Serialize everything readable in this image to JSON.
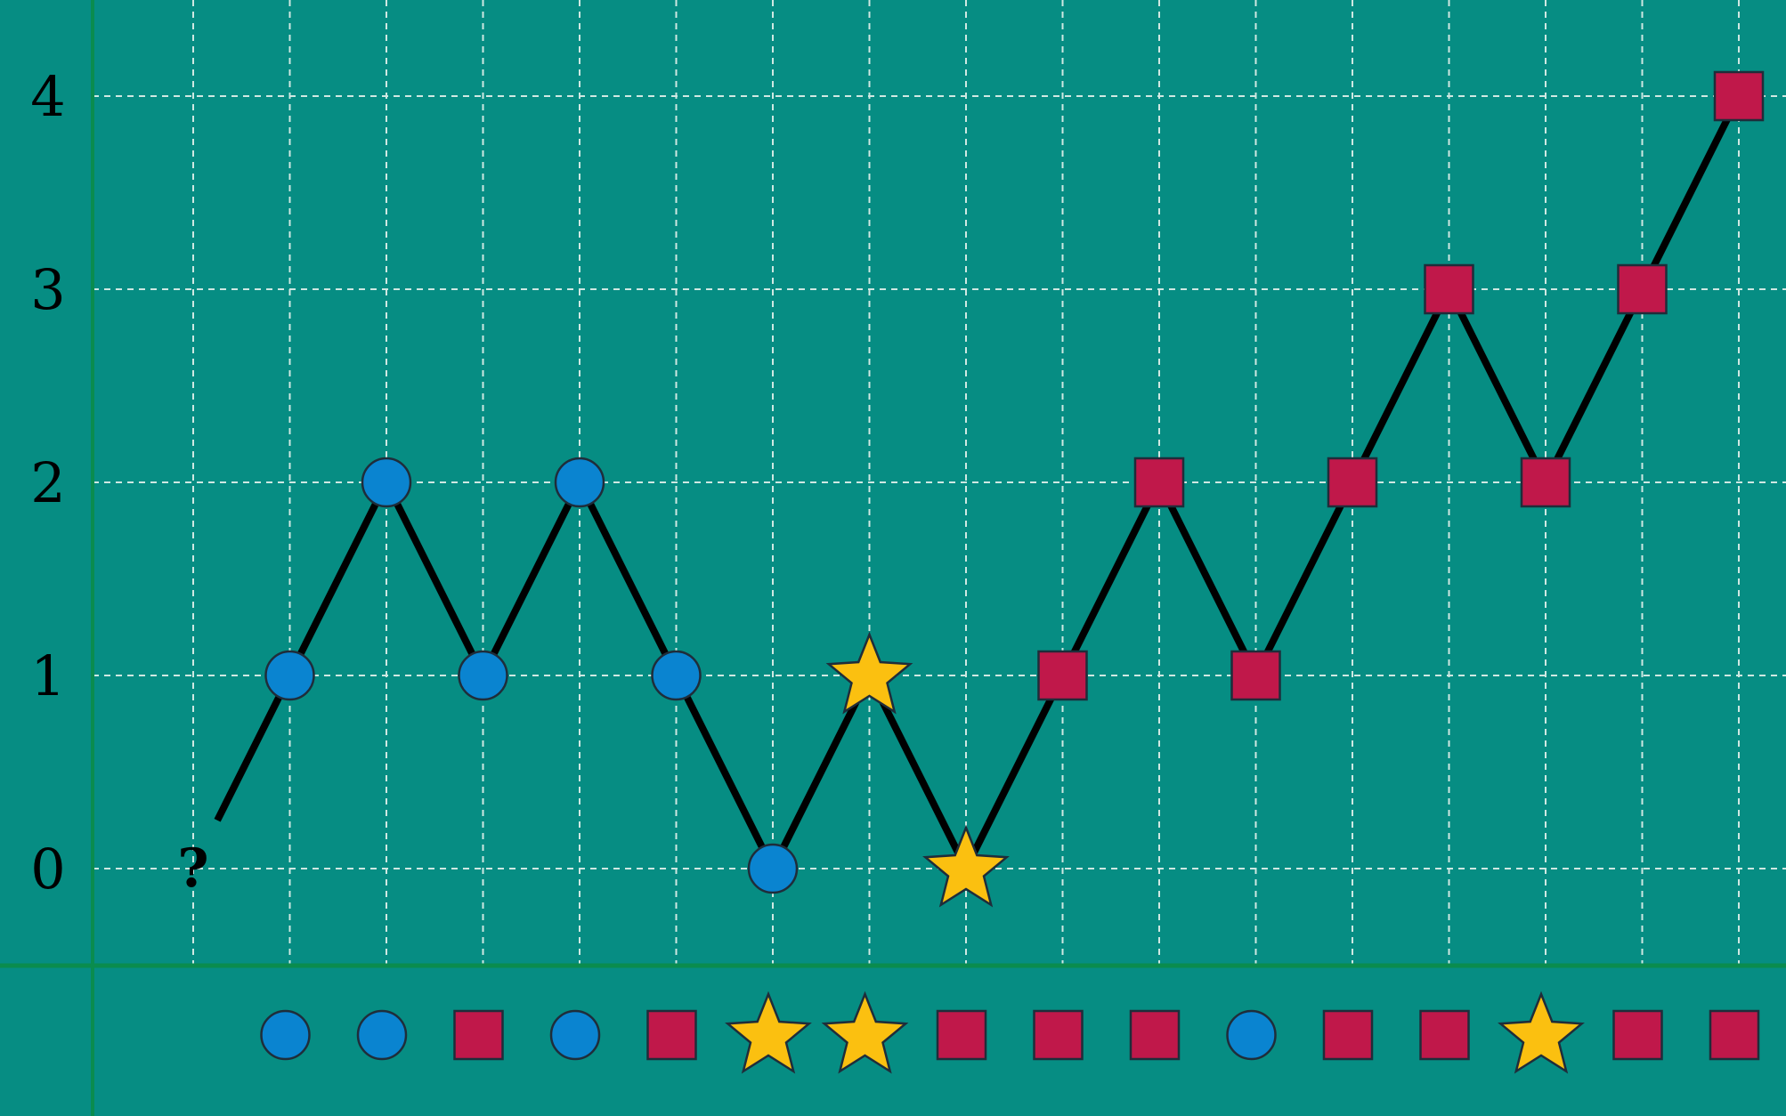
{
  "colors": {
    "background": "#068d83",
    "grid": "#cfe8e2",
    "axis": "#0a8c4e",
    "path": "#000000",
    "circle": "#0a84d0",
    "square": "#c0184a",
    "star": "#fbc010",
    "outline": "#1f2d3a"
  },
  "chart_data": {
    "type": "line",
    "y_tick_labels": [
      "0",
      "1",
      "2",
      "3",
      "4"
    ],
    "ylim": [
      0,
      4
    ],
    "unknown_marker": "?",
    "path_points": [
      {
        "x": 0,
        "y": 0,
        "marker": "unknown"
      },
      {
        "x": 1,
        "y": 1,
        "marker": "circle"
      },
      {
        "x": 2,
        "y": 2,
        "marker": "circle"
      },
      {
        "x": 3,
        "y": 1,
        "marker": "circle"
      },
      {
        "x": 4,
        "y": 2,
        "marker": "circle"
      },
      {
        "x": 5,
        "y": 1,
        "marker": "circle"
      },
      {
        "x": 6,
        "y": 0,
        "marker": "circle"
      },
      {
        "x": 7,
        "y": 1,
        "marker": "star"
      },
      {
        "x": 8,
        "y": 0,
        "marker": "star"
      },
      {
        "x": 9,
        "y": 1,
        "marker": "square"
      },
      {
        "x": 10,
        "y": 2,
        "marker": "square"
      },
      {
        "x": 11,
        "y": 1,
        "marker": "square"
      },
      {
        "x": 12,
        "y": 2,
        "marker": "square"
      },
      {
        "x": 13,
        "y": 3,
        "marker": "square"
      },
      {
        "x": 14,
        "y": 2,
        "marker": "square"
      },
      {
        "x": 15,
        "y": 3,
        "marker": "square"
      },
      {
        "x": 16,
        "y": 4,
        "marker": "square"
      }
    ],
    "sequence": [
      "circle",
      "circle",
      "square",
      "circle",
      "square",
      "star",
      "star",
      "square",
      "square",
      "square",
      "circle",
      "square",
      "square",
      "star",
      "square",
      "square"
    ],
    "grid": true
  }
}
